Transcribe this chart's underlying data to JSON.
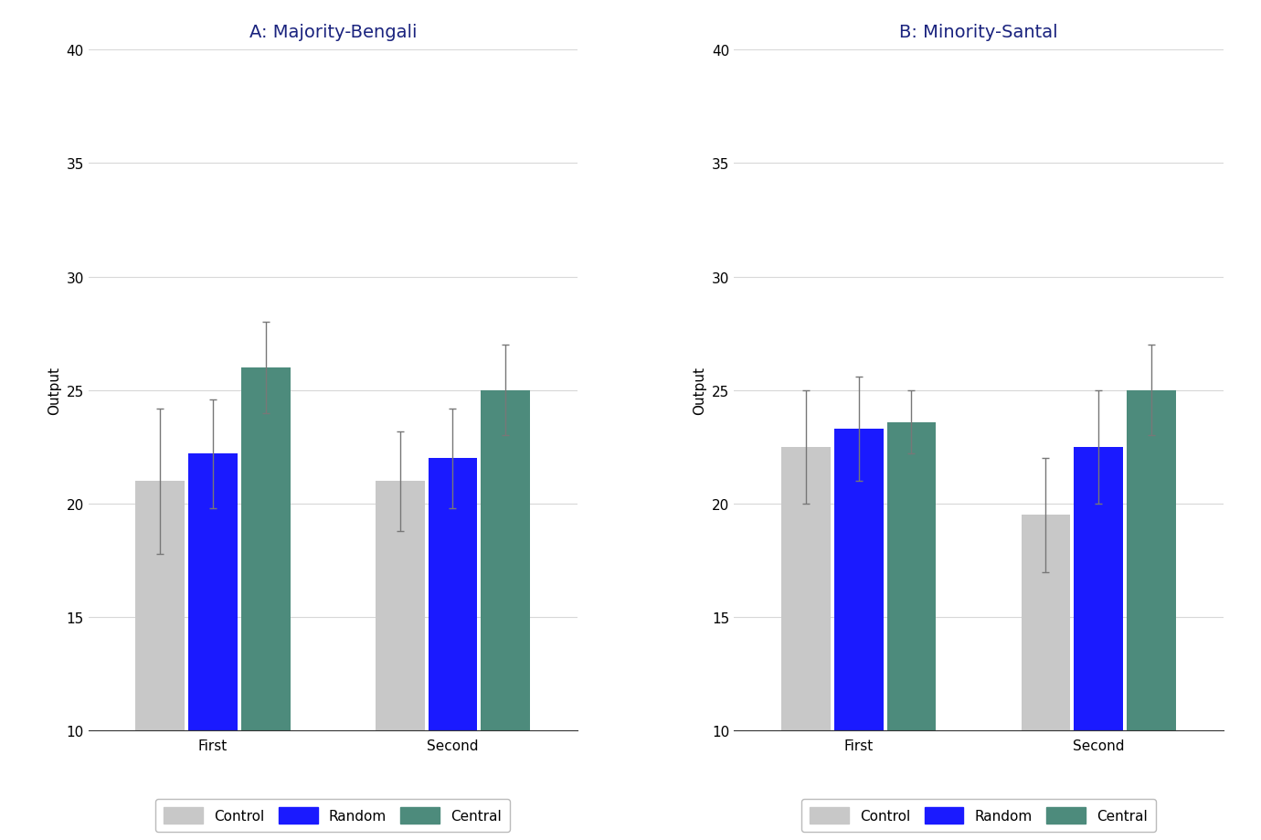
{
  "panel_A": {
    "title": "A: Majority-Bengali",
    "groups": [
      "First",
      "Second"
    ],
    "bars": {
      "Control": {
        "values": [
          21.0,
          21.0
        ],
        "yerr_lo": [
          3.2,
          2.2
        ],
        "yerr_hi": [
          3.2,
          2.2
        ]
      },
      "Random": {
        "values": [
          22.2,
          22.0
        ],
        "yerr_lo": [
          2.4,
          2.2
        ],
        "yerr_hi": [
          2.4,
          2.2
        ]
      },
      "Central": {
        "values": [
          26.0,
          25.0
        ],
        "yerr_lo": [
          2.0,
          2.0
        ],
        "yerr_hi": [
          2.0,
          2.0
        ]
      }
    }
  },
  "panel_B": {
    "title": "B: Minority-Santal",
    "groups": [
      "First",
      "Second"
    ],
    "bars": {
      "Control": {
        "values": [
          22.5,
          19.5
        ],
        "yerr_lo": [
          2.5,
          2.5
        ],
        "yerr_hi": [
          2.5,
          2.5
        ]
      },
      "Random": {
        "values": [
          23.3,
          22.5
        ],
        "yerr_lo": [
          2.3,
          2.5
        ],
        "yerr_hi": [
          2.3,
          2.5
        ]
      },
      "Central": {
        "values": [
          23.6,
          25.0
        ],
        "yerr_lo": [
          1.4,
          2.0
        ],
        "yerr_hi": [
          1.4,
          2.0
        ]
      }
    }
  },
  "bar_colors": {
    "Control": "#c8c8c8",
    "Random": "#1a1aff",
    "Central": "#4d8b7c"
  },
  "ylabel": "Output",
  "ylim": [
    10,
    40
  ],
  "yticks": [
    10,
    15,
    20,
    25,
    30,
    35,
    40
  ],
  "grid_yticks": [
    15,
    20,
    25,
    30,
    35,
    40
  ],
  "bar_width": 0.22,
  "group_positions": [
    0.0,
    1.0
  ],
  "xlim": [
    -0.52,
    1.52
  ],
  "title_color": "#1a237e",
  "title_fontsize": 14,
  "axis_label_fontsize": 11,
  "tick_fontsize": 11,
  "legend_fontsize": 11,
  "error_capsize": 3,
  "error_color": "#777777",
  "error_linewidth": 1.0,
  "background_color": "#ffffff",
  "grid_color": "#d8d8d8",
  "grid_linewidth": 0.8,
  "spine_color": "#333333",
  "bar_names": [
    "Control",
    "Random",
    "Central"
  ]
}
